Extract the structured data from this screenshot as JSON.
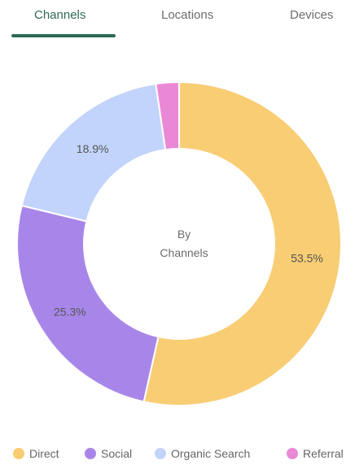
{
  "tabs": [
    {
      "label": "Channels",
      "active": true
    },
    {
      "label": "Locations",
      "active": false
    },
    {
      "label": "Devices",
      "active": false
    }
  ],
  "colors": {
    "accent": "#2e6a55",
    "direct": "#f8cd74",
    "social": "#a886e9",
    "organic_search": "#c2d4fb",
    "referral": "#eb88d6"
  },
  "chart_data": {
    "type": "pie",
    "donut": true,
    "center_label": [
      "By",
      "Channels"
    ],
    "categories": [
      "Direct",
      "Social",
      "Organic Search",
      "Referral"
    ],
    "values": [
      53.5,
      25.3,
      18.9,
      2.3
    ],
    "value_labels": [
      "53.5%",
      "25.3%",
      "18.9%",
      ""
    ],
    "colors": [
      "#f8cd74",
      "#a886e9",
      "#c2d4fb",
      "#eb88d6"
    ],
    "legend_position": "bottom"
  }
}
